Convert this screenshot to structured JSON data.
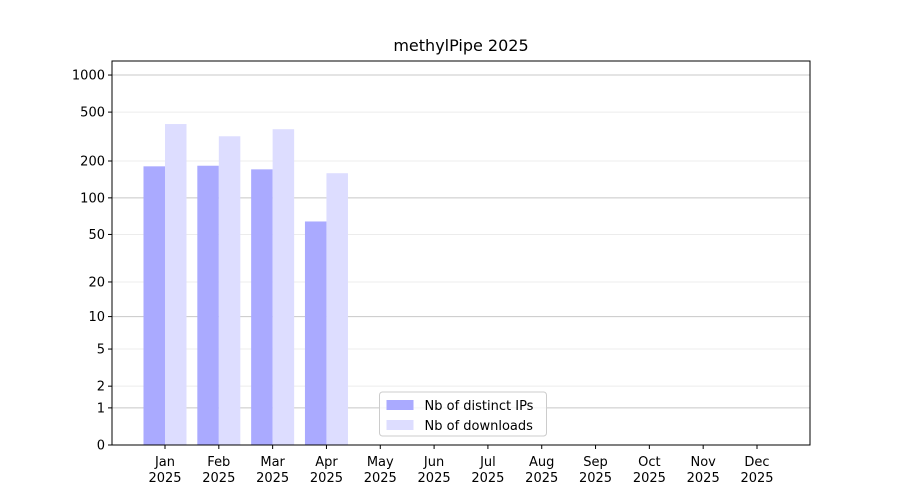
{
  "chart_data": {
    "type": "bar",
    "title": "methylPipe 2025",
    "categories": [
      "Jan 2025",
      "Feb 2025",
      "Mar 2025",
      "Apr 2025",
      "May 2025",
      "Jun 2025",
      "Jul 2025",
      "Aug 2025",
      "Sep 2025",
      "Oct 2025",
      "Nov 2025",
      "Dec 2025"
    ],
    "series": [
      {
        "name": "Nb of distinct IPs",
        "color": "#aaaaff",
        "values": [
          181,
          183,
          171,
          64,
          null,
          null,
          null,
          null,
          null,
          null,
          null,
          null
        ]
      },
      {
        "name": "Nb of downloads",
        "color": "#ddddff",
        "values": [
          400,
          318,
          363,
          159,
          null,
          null,
          null,
          null,
          null,
          null,
          null,
          null
        ]
      }
    ],
    "yscale": "log1p",
    "ylim": [
      0,
      1300
    ],
    "yticks": [
      0,
      1,
      2,
      5,
      10,
      20,
      50,
      100,
      200,
      500,
      1000
    ],
    "grid": true,
    "legend": "lower center"
  }
}
